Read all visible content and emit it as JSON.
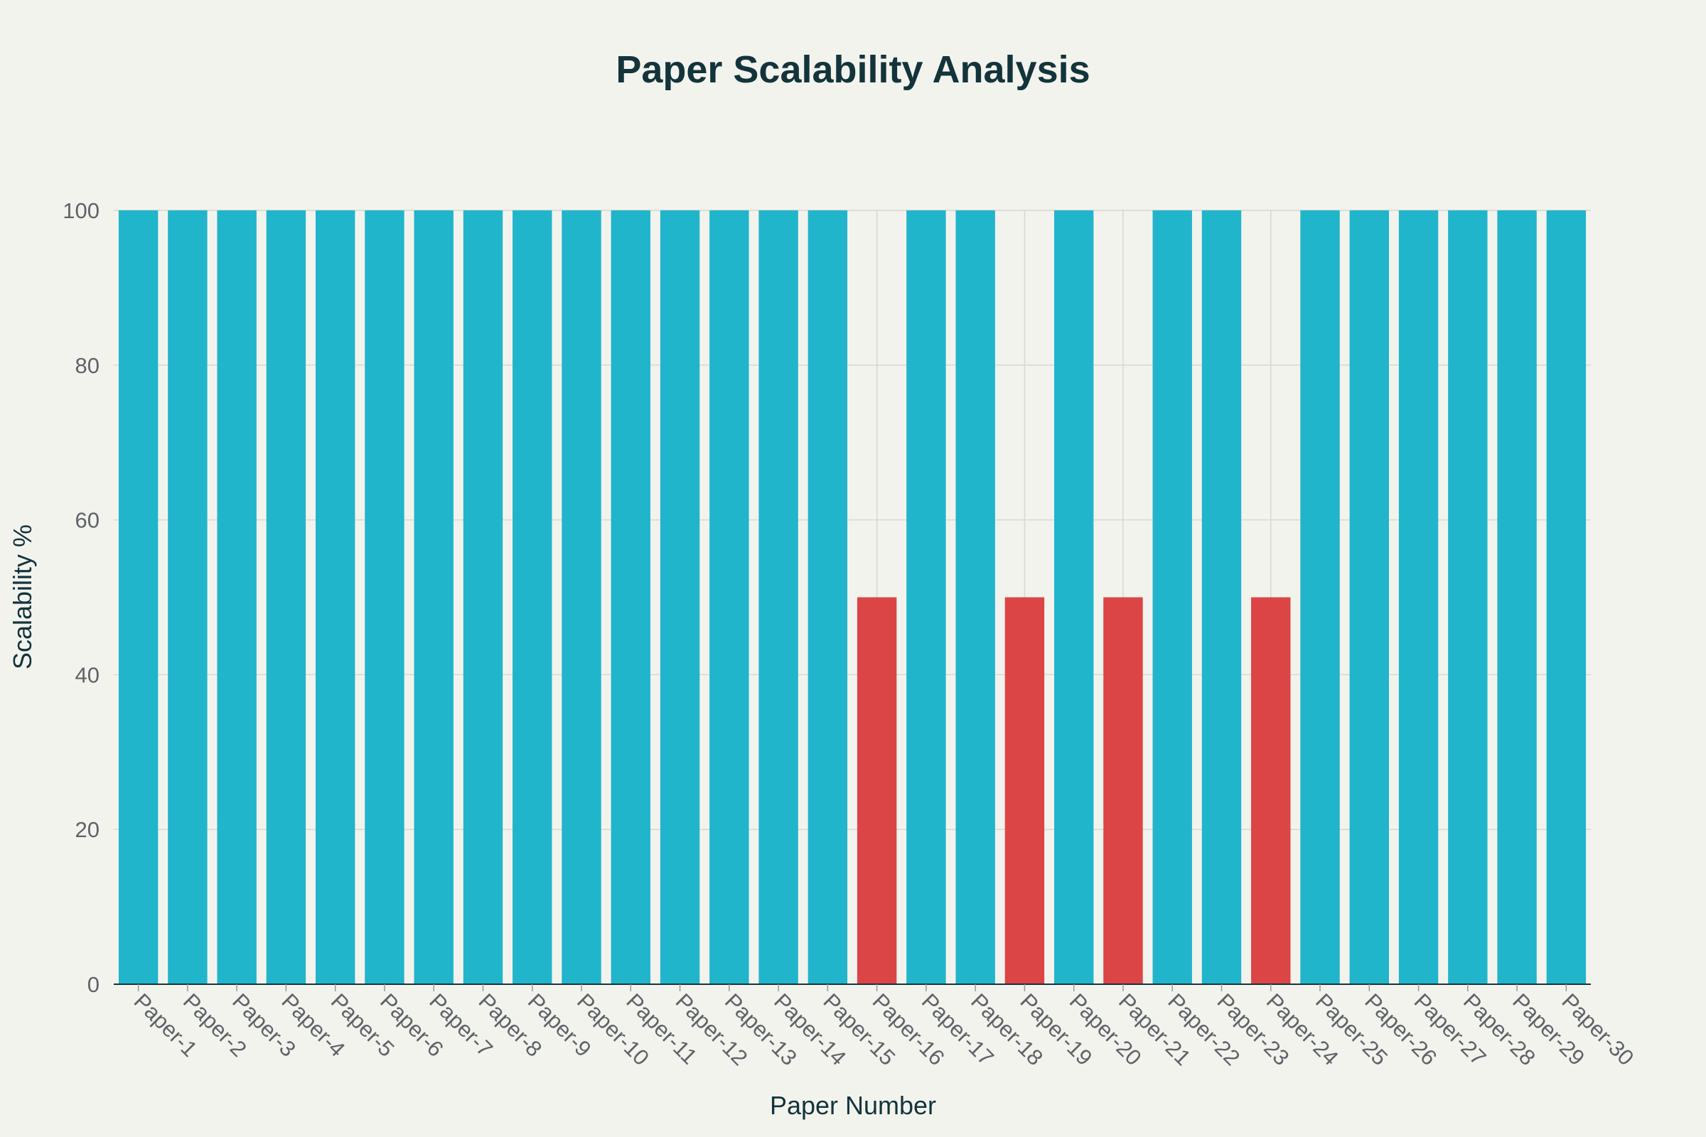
{
  "chart_data": {
    "type": "bar",
    "title": "Paper Scalability Analysis",
    "xlabel": "Paper Number",
    "ylabel": "Scalability %",
    "ylim": [
      0,
      100
    ],
    "yticks": [
      0,
      20,
      40,
      60,
      80,
      100
    ],
    "categories": [
      "Paper-1",
      "Paper-2",
      "Paper-3",
      "Paper-4",
      "Paper-5",
      "Paper-6",
      "Paper-7",
      "Paper-8",
      "Paper-9",
      "Paper-10",
      "Paper-11",
      "Paper-12",
      "Paper-13",
      "Paper-14",
      "Paper-15",
      "Paper-16",
      "Paper-17",
      "Paper-18",
      "Paper-19",
      "Paper-20",
      "Paper-21",
      "Paper-22",
      "Paper-23",
      "Paper-24",
      "Paper-25",
      "Paper-26",
      "Paper-27",
      "Paper-28",
      "Paper-29",
      "Paper-30"
    ],
    "values": [
      100,
      100,
      100,
      100,
      100,
      100,
      100,
      100,
      100,
      100,
      100,
      100,
      100,
      100,
      100,
      50,
      100,
      100,
      50,
      100,
      50,
      100,
      100,
      50,
      100,
      100,
      100,
      100,
      100,
      100
    ],
    "colors": {
      "high": "#21b5cb",
      "low": "#db4545",
      "background": "#f3f3ee",
      "text": "#13343b"
    },
    "grid": true,
    "legend": "none"
  }
}
